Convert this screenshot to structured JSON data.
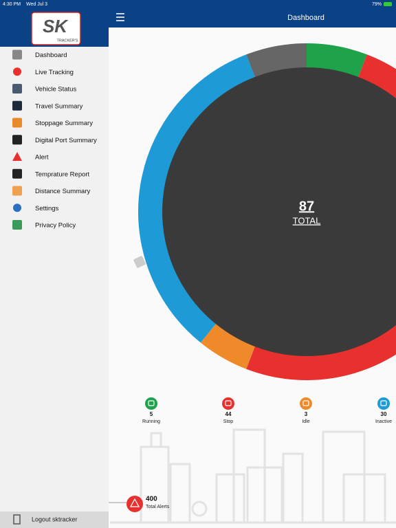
{
  "status_bar": {
    "time": "4:30 PM",
    "date": "Wed Jul 3",
    "battery": "79%"
  },
  "logo": {
    "mark": "SK",
    "tagline": "TRACKER'S"
  },
  "header": {
    "title": "Dashboard"
  },
  "menu": {
    "items": [
      "Dashboard",
      "Live Tracking",
      "Vehicle Status",
      "Travel Summary",
      "Stoppage Summary",
      "Digital Port Summary",
      "Alert",
      "Temprature Report",
      "Distance Summary",
      "Settings",
      "Privacy Policy"
    ],
    "logout": "Logout sktracker"
  },
  "summary": {
    "total": 87,
    "total_label": "TOTAL",
    "statuses": [
      {
        "count": 5,
        "label": "Running",
        "color": "#1fa34a"
      },
      {
        "count": 44,
        "label": "Stop",
        "color": "#e8312f"
      },
      {
        "count": 3,
        "label": "Idle",
        "color": "#ef8a2b"
      },
      {
        "count": 30,
        "label": "Inactive",
        "color": "#1e9ad6"
      }
    ]
  },
  "alerts": {
    "count": 400,
    "label": "Total Alerts"
  }
}
